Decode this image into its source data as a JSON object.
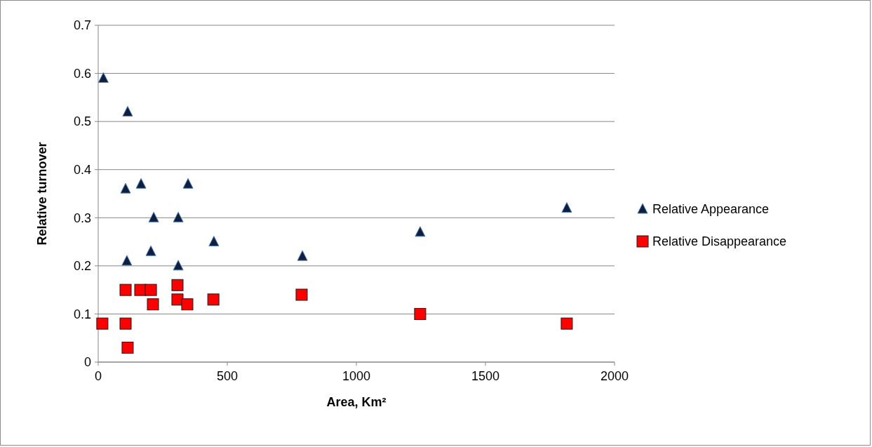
{
  "chart_data": {
    "type": "scatter",
    "xlabel": "Area, Km²",
    "ylabel": "Relative turnover",
    "xlim": [
      0,
      2000
    ],
    "ylim": [
      0,
      0.7
    ],
    "xticks": [
      0,
      500,
      1000,
      1500,
      2000
    ],
    "yticks": [
      0,
      0.1,
      0.2,
      0.3,
      0.4,
      0.5,
      0.6,
      0.7
    ],
    "grid": "y",
    "legend": "right",
    "series": [
      {
        "name": "Relative Appearance",
        "color": "#0f1f3d",
        "marker": "triangle",
        "x": [
          20,
          114,
          106,
          166,
          348,
          215,
          310,
          111,
          204,
          310,
          448,
          791,
          1247,
          1815
        ],
        "values": [
          0.59,
          0.52,
          0.36,
          0.37,
          0.37,
          0.3,
          0.3,
          0.21,
          0.23,
          0.2,
          0.25,
          0.22,
          0.27,
          0.32
        ]
      },
      {
        "name": "Relative Disappearance",
        "color": "#ff0000",
        "marker": "square",
        "x": [
          16,
          106,
          106,
          114,
          163,
          204,
          212,
          307,
          307,
          345,
          446,
          788,
          1247,
          1815
        ],
        "values": [
          0.08,
          0.15,
          0.08,
          0.03,
          0.15,
          0.15,
          0.12,
          0.16,
          0.13,
          0.12,
          0.13,
          0.14,
          0.1,
          0.08
        ]
      }
    ]
  }
}
